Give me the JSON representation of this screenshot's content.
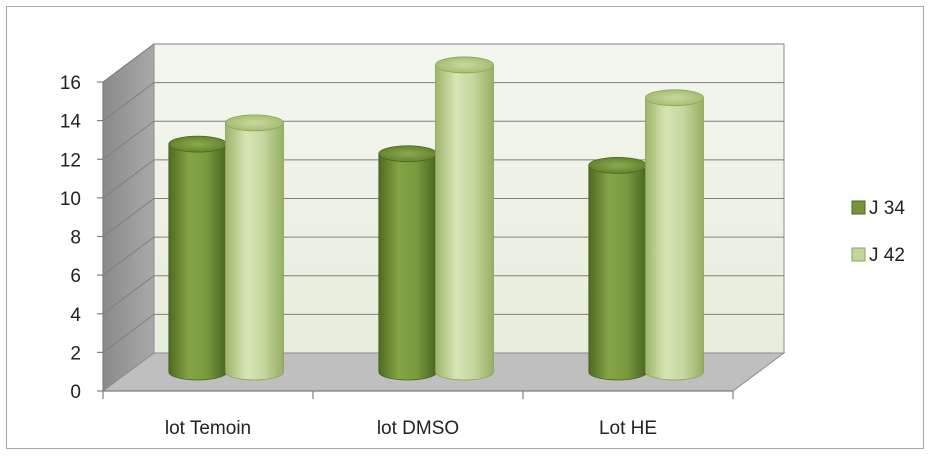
{
  "chart_data": {
    "type": "bar",
    "style": "3d-cylinder",
    "categories": [
      "lot Temoin",
      "lot DMSO",
      "Lot HE"
    ],
    "series": [
      {
        "name": "J 34",
        "values": [
          11.8,
          11.3,
          10.7
        ],
        "color": "#77933c"
      },
      {
        "name": "J 42",
        "values": [
          12.9,
          15.9,
          14.2
        ],
        "color": "#c3d69b"
      }
    ],
    "ylim": [
      0,
      16
    ],
    "yticks": [
      0,
      2,
      4,
      6,
      8,
      10,
      12,
      14,
      16
    ],
    "ytick_labels": [
      "0",
      "2",
      "4",
      "6",
      "8",
      "10",
      "12",
      "14",
      "16"
    ],
    "grid": true,
    "legend": "right",
    "wall_color": "#eef3e6",
    "floor_color": "#bfbfbf",
    "side_wall_color": "#9d9d9d"
  }
}
